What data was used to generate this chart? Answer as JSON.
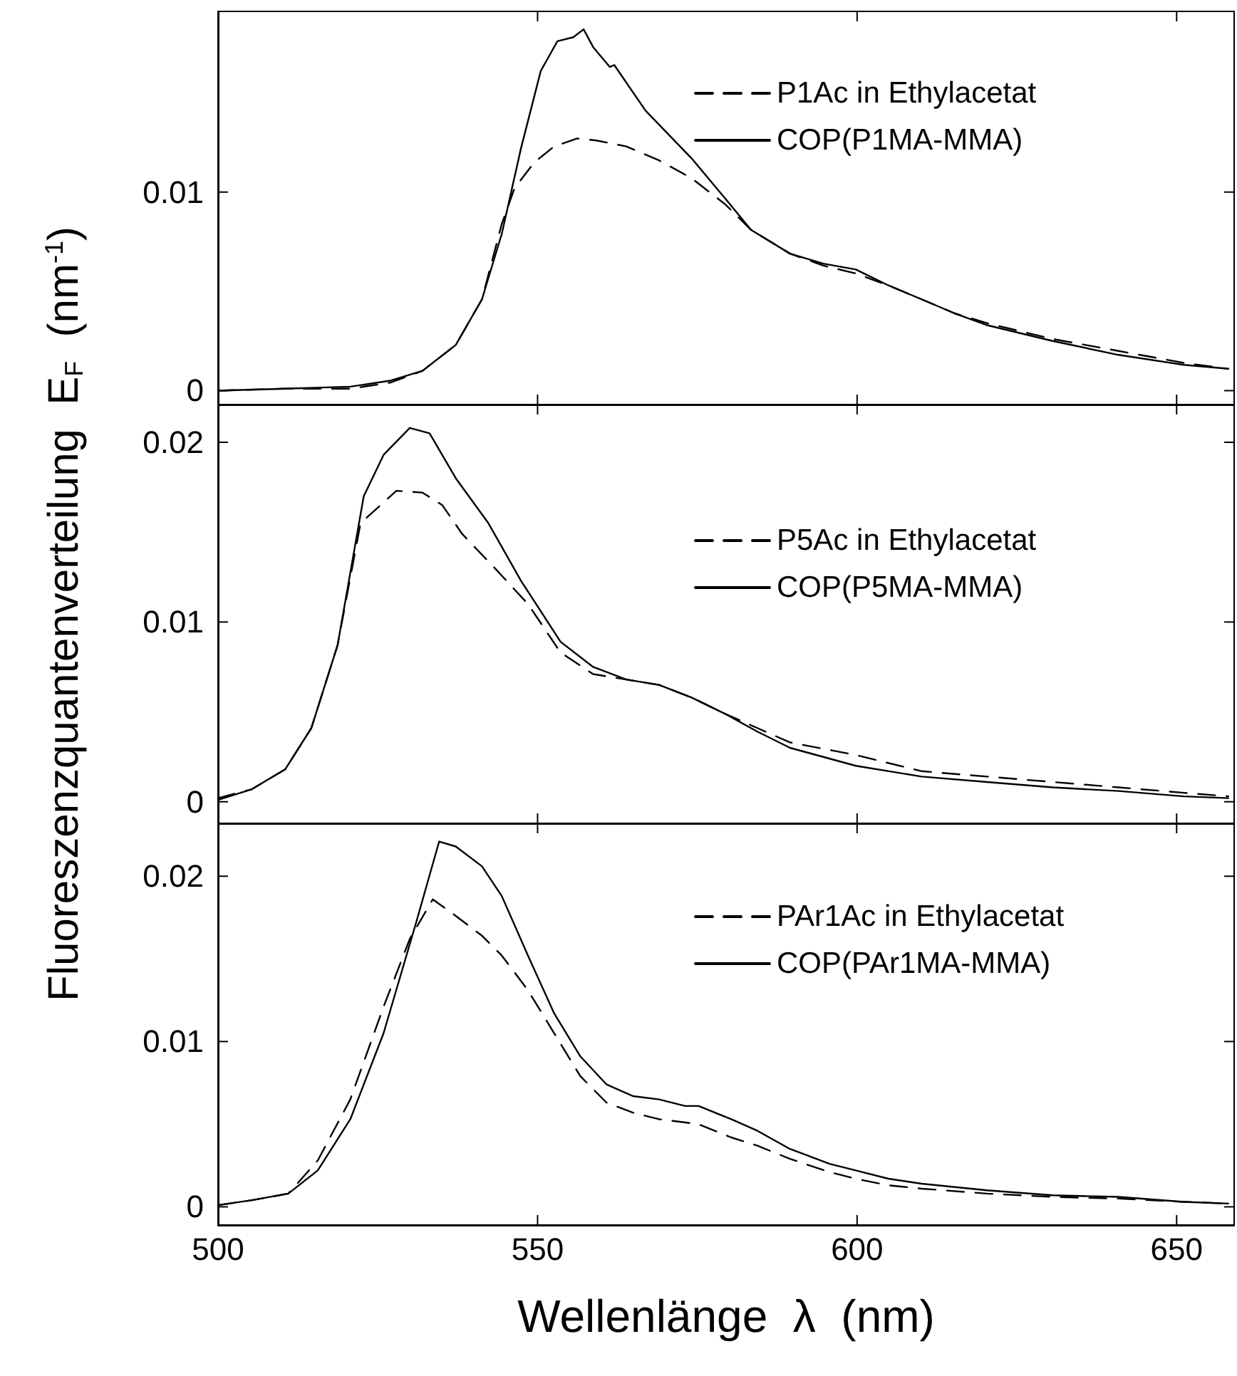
{
  "chart_data": [
    {
      "type": "line",
      "xlim": [
        500,
        659
      ],
      "ylim": [
        -0.0007,
        0.0191
      ],
      "tick_labels": "y",
      "xticks": [
        500,
        550,
        600,
        650
      ],
      "yticks": [
        0,
        0.01
      ],
      "grid": false,
      "legend": "top right",
      "marker": "none",
      "series": [
        {
          "name": "P1Ac in Ethylacetat",
          "color": "#000000",
          "line_style": "dashed",
          "x": [
            500,
            510.5,
            520.7,
            526.9,
            532,
            537.2,
            541.3,
            544.4,
            546.4,
            549.5,
            552.6,
            556.2,
            559.2,
            563.9,
            569,
            574.1,
            579.3,
            583.4,
            589.5,
            594.7,
            599.8,
            604.9,
            610.1,
            615.2,
            620.3,
            630.6,
            640.9,
            651.1,
            658.1
          ],
          "values": [
            0,
            0.0001,
            0.0001,
            0.0004,
            0.001,
            0.0023,
            0.0046,
            0.0084,
            0.0102,
            0.0115,
            0.0123,
            0.0127,
            0.0126,
            0.0123,
            0.0116,
            0.0107,
            0.0094,
            0.0081,
            0.0069,
            0.0063,
            0.0059,
            0.0053,
            0.0046,
            0.0039,
            0.0034,
            0.0026,
            0.002,
            0.0014,
            0.0011
          ]
        },
        {
          "name": "COP(P1MA-MMA)",
          "color": "#000000",
          "line_style": "solid",
          "x": [
            500,
            510.5,
            520.7,
            526.9,
            532,
            537.2,
            541.3,
            544.4,
            547.4,
            550.5,
            553.1,
            555.6,
            557.2,
            558.7,
            561.3,
            562,
            566.9,
            574.1,
            579.3,
            583.4,
            589.5,
            594.7,
            599.8,
            604.9,
            610.1,
            615.2,
            620.3,
            630.6,
            640.9,
            651.1,
            658.1
          ],
          "values": [
            0,
            0.0001,
            0.0002,
            0.0005,
            0.001,
            0.0023,
            0.0046,
            0.0079,
            0.0122,
            0.0161,
            0.0176,
            0.0178,
            0.0182,
            0.0173,
            0.0163,
            0.0164,
            0.0141,
            0.0117,
            0.0097,
            0.0081,
            0.0069,
            0.0064,
            0.0061,
            0.0053,
            0.0046,
            0.0039,
            0.0033,
            0.0025,
            0.0018,
            0.0013,
            0.0011
          ]
        }
      ]
    },
    {
      "type": "line",
      "xlim": [
        500,
        659
      ],
      "ylim": [
        -0.0012,
        0.0221
      ],
      "tick_labels": "y",
      "ylabel": "Fluoreszenzquantenverteilung  E$_{F}$  (nm$^{-1}$)",
      "xticks": [
        500,
        550,
        600,
        650
      ],
      "yticks": [
        0,
        0.01,
        0.02
      ],
      "grid": false,
      "legend": "top right",
      "marker": "none",
      "series": [
        {
          "name": "P5Ac in Ethylacetat",
          "color": "#000000",
          "line_style": "dashed",
          "x": [
            500,
            505.3,
            510.5,
            514.6,
            518.7,
            522.3,
            524.8,
            527.9,
            532,
            535.1,
            538.2,
            543.3,
            548.5,
            553.6,
            558.7,
            563.9,
            569,
            574.1,
            579.3,
            584.4,
            589.5,
            599.8,
            610.1,
            620.3,
            630.6,
            640.9,
            651.1,
            658.1
          ],
          "values": [
            0.0002,
            0.0007,
            0.0018,
            0.0041,
            0.0087,
            0.0155,
            0.0163,
            0.0173,
            0.0172,
            0.0165,
            0.0149,
            0.013,
            0.011,
            0.0083,
            0.0071,
            0.0068,
            0.0065,
            0.0058,
            0.0049,
            0.0041,
            0.0033,
            0.0026,
            0.0017,
            0.0014,
            0.0011,
            0.0008,
            0.0005,
            0.0003
          ]
        },
        {
          "name": "COP(P5MA-MMA)",
          "color": "#000000",
          "line_style": "solid",
          "x": [
            500,
            505.3,
            510.5,
            514.6,
            518.7,
            522.8,
            525.9,
            530,
            533.1,
            537.2,
            542.3,
            547.4,
            553.6,
            558.7,
            563.9,
            569,
            574.1,
            579.3,
            584.4,
            589.5,
            599.8,
            610.1,
            620.3,
            630.6,
            640.9,
            651.1,
            658.1
          ],
          "values": [
            0.0001,
            0.0007,
            0.0018,
            0.0041,
            0.0087,
            0.017,
            0.0193,
            0.0208,
            0.0205,
            0.018,
            0.0155,
            0.0123,
            0.0089,
            0.0075,
            0.0068,
            0.0065,
            0.0058,
            0.0049,
            0.0039,
            0.003,
            0.002,
            0.0014,
            0.0011,
            0.0008,
            0.0006,
            0.0003,
            0.0002
          ]
        }
      ]
    },
    {
      "type": "line",
      "xlim": [
        500,
        659
      ],
      "ylim": [
        -0.0011,
        0.0232
      ],
      "xlabel": "Wellenlänge  λ  (nm)",
      "xticks": [
        500,
        550,
        600,
        650
      ],
      "yticks": [
        0,
        0.01,
        0.02
      ],
      "grid": false,
      "legend": "top right",
      "marker": "none",
      "series": [
        {
          "name": "PAr1Ac in Ethylacetat",
          "color": "#000000",
          "line_style": "dashed",
          "x": [
            500,
            505.3,
            511,
            515.6,
            520.7,
            525.9,
            530,
            533.6,
            537.2,
            541.3,
            544.4,
            548.5,
            552.6,
            556.7,
            560.8,
            564.9,
            569,
            575.2,
            580.3,
            584.4,
            589.5,
            595.7,
            599.8,
            604.9,
            610.1,
            620.3,
            630.6,
            640.9,
            651.1,
            658.1
          ],
          "values": [
            0.0001,
            0.0004,
            0.0008,
            0.0028,
            0.0065,
            0.0121,
            0.0162,
            0.0186,
            0.0176,
            0.0164,
            0.0152,
            0.0131,
            0.0105,
            0.0079,
            0.0063,
            0.0057,
            0.0053,
            0.005,
            0.0042,
            0.0037,
            0.0029,
            0.0021,
            0.0017,
            0.0013,
            0.0011,
            0.0008,
            0.0006,
            0.0005,
            0.0003,
            0.0002
          ]
        },
        {
          "name": "COP(PAr1MA-MMA)",
          "color": "#000000",
          "line_style": "solid",
          "x": [
            500,
            505.3,
            511,
            515.6,
            520.7,
            525.9,
            531,
            534.6,
            537.2,
            541.3,
            544.4,
            548.5,
            552.6,
            556.7,
            560.8,
            564.9,
            569,
            573.1,
            575.2,
            580.3,
            584.4,
            589.5,
            595.7,
            599.8,
            604.9,
            610.1,
            620.3,
            630.6,
            640.9,
            651.1,
            658.1
          ],
          "values": [
            0.0001,
            0.0004,
            0.0008,
            0.0022,
            0.0053,
            0.0105,
            0.0172,
            0.0221,
            0.0218,
            0.0206,
            0.0188,
            0.0152,
            0.0117,
            0.0091,
            0.0074,
            0.0067,
            0.0065,
            0.0061,
            0.0061,
            0.0053,
            0.0046,
            0.0035,
            0.0026,
            0.0022,
            0.0017,
            0.0014,
            0.001,
            0.0007,
            0.0006,
            0.0003,
            0.0002
          ]
        }
      ]
    }
  ]
}
